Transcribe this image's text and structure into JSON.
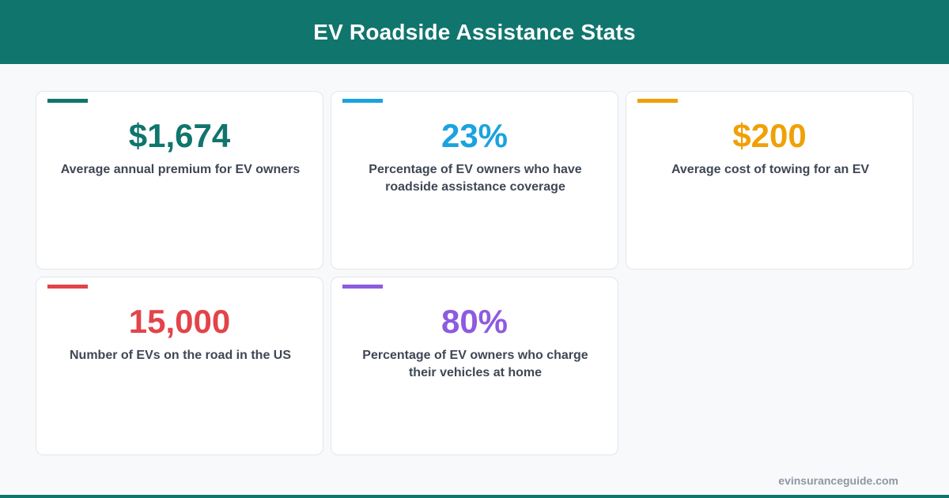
{
  "header": {
    "title": "EV Roadside Assistance Stats"
  },
  "stats": [
    {
      "value": "$1,674",
      "label": "Average annual premium for EV owners",
      "color": "#10756d"
    },
    {
      "value": "23%",
      "label": "Percentage of EV owners who have roadside assistance coverage",
      "color": "#1aa3de"
    },
    {
      "value": "$200",
      "label": "Average cost of towing for an EV",
      "color": "#f0a007"
    },
    {
      "value": "15,000",
      "label": "Number of EVs on the road in the US",
      "color": "#e2444a"
    },
    {
      "value": "80%",
      "label": "Percentage of EV owners who charge their vehicles at home",
      "color": "#8c5be0"
    }
  ],
  "footer": {
    "url": "evinsuranceguide.com"
  },
  "colors": {
    "brand": "#10756d",
    "background": "#f8f9fb",
    "label_text": "#3f4756"
  }
}
